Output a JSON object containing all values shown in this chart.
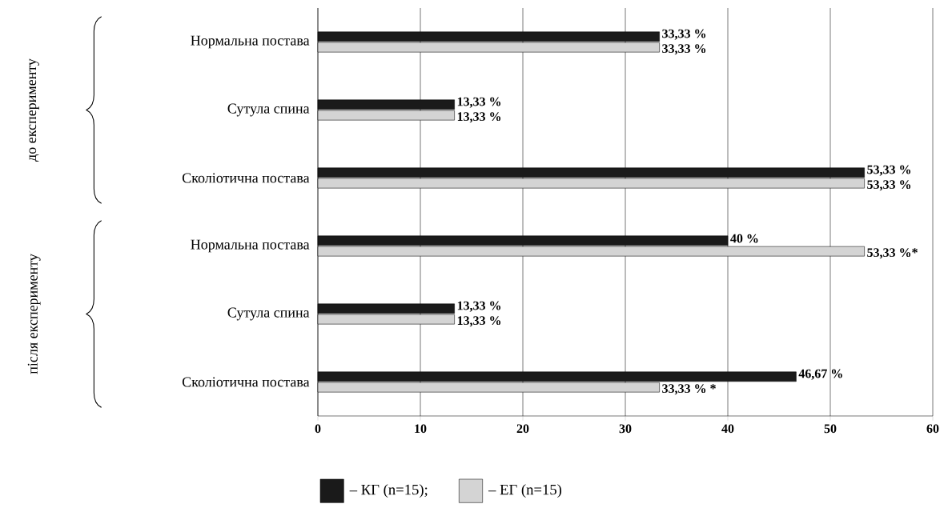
{
  "chart_data": {
    "type": "bar",
    "orientation": "horizontal",
    "categories": [
      "Нормальна постава",
      "Сутула спина",
      "Сколіотична постава",
      "Нормальна постава",
      "Сутула спина",
      "Сколіотична постава"
    ],
    "series": [
      {
        "name": "– КГ (n=15);",
        "color": "#1a1a1a",
        "values": [
          33.33,
          13.33,
          53.33,
          40,
          13.33,
          46.67
        ],
        "value_labels": [
          "33,33 %",
          "13,33 %",
          "53,33 %",
          "40 %",
          "13,33 %",
          "46,67 %"
        ]
      },
      {
        "name": "– ЕГ (n=15)",
        "color": "#d4d4d4",
        "values": [
          33.33,
          13.33,
          53.33,
          53.33,
          13.33,
          33.33
        ],
        "value_labels": [
          "33,33 %",
          "13,33 %",
          "53,33 %",
          "53,33 %*",
          "13,33 %",
          "33,33 % *"
        ]
      }
    ],
    "xlim": [
      0,
      60
    ],
    "xticks": [
      0,
      10,
      20,
      30,
      40,
      50,
      60
    ],
    "grid": "x",
    "legend": "bottom",
    "annotations": [
      "до експерименту",
      "після експерименту"
    ]
  }
}
